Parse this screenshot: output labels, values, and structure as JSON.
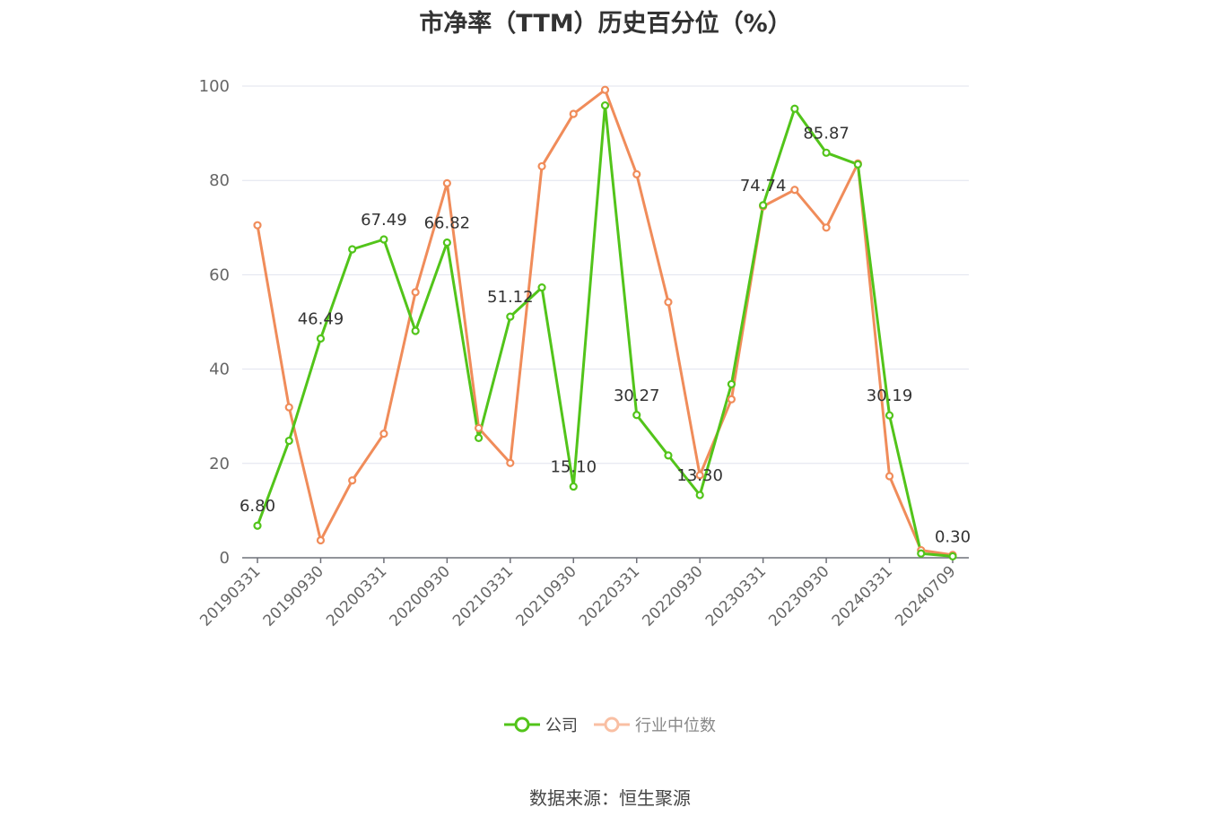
{
  "chart_data": {
    "type": "line",
    "title": "市净率（TTM）历史百分位（%）",
    "x": [
      "20190331",
      "20190630",
      "20190930",
      "20191231",
      "20200331",
      "20200630",
      "20200930",
      "20201231",
      "20210331",
      "20210630",
      "20210930",
      "20211231",
      "20220331",
      "20220630",
      "20220930",
      "20221231",
      "20230331",
      "20230630",
      "20230930",
      "20231231",
      "20240331",
      "20240630",
      "20240709"
    ],
    "x_tick_labels": [
      "20190331",
      "20190930",
      "20200331",
      "20200930",
      "20210331",
      "20210930",
      "20220331",
      "20220930",
      "20230331",
      "20230930",
      "20240331",
      "20240709"
    ],
    "ylim": [
      0,
      100
    ],
    "y_ticks": [
      0,
      20,
      40,
      60,
      80,
      100
    ],
    "grid": true,
    "legend_position": "bottom",
    "series": [
      {
        "name": "公司",
        "color": "#52c41a",
        "values": [
          6.8,
          24.8,
          46.49,
          65.4,
          67.49,
          48.1,
          66.82,
          25.4,
          51.12,
          57.3,
          15.1,
          95.9,
          30.27,
          21.7,
          13.3,
          36.8,
          74.74,
          95.2,
          85.87,
          83.4,
          30.19,
          0.9,
          0.3
        ]
      },
      {
        "name": "行业中位数",
        "color": "#f08c5a",
        "values": [
          70.5,
          31.9,
          3.7,
          16.4,
          26.3,
          56.3,
          79.4,
          27.5,
          20.1,
          83.0,
          94.1,
          99.2,
          81.3,
          54.2,
          17.5,
          33.6,
          74.5,
          78.0,
          70.0,
          83.6,
          17.3,
          1.6,
          0.6
        ]
      }
    ],
    "data_labels": [
      {
        "series": 0,
        "index": 0,
        "text": "6.80"
      },
      {
        "series": 0,
        "index": 2,
        "text": "46.49"
      },
      {
        "series": 0,
        "index": 4,
        "text": "67.49"
      },
      {
        "series": 0,
        "index": 6,
        "text": "66.82"
      },
      {
        "series": 0,
        "index": 8,
        "text": "51.12"
      },
      {
        "series": 0,
        "index": 10,
        "text": "15.10"
      },
      {
        "series": 0,
        "index": 12,
        "text": "30.27"
      },
      {
        "series": 0,
        "index": 14,
        "text": "13.30"
      },
      {
        "series": 0,
        "index": 16,
        "text": "74.74"
      },
      {
        "series": 0,
        "index": 18,
        "text": "85.87"
      },
      {
        "series": 0,
        "index": 20,
        "text": "30.19"
      },
      {
        "series": 0,
        "index": 22,
        "text": "0.30"
      }
    ]
  },
  "legend": {
    "company_label": "公司",
    "industry_label": "行业中位数"
  },
  "source_text": "数据来源：恒生聚源"
}
